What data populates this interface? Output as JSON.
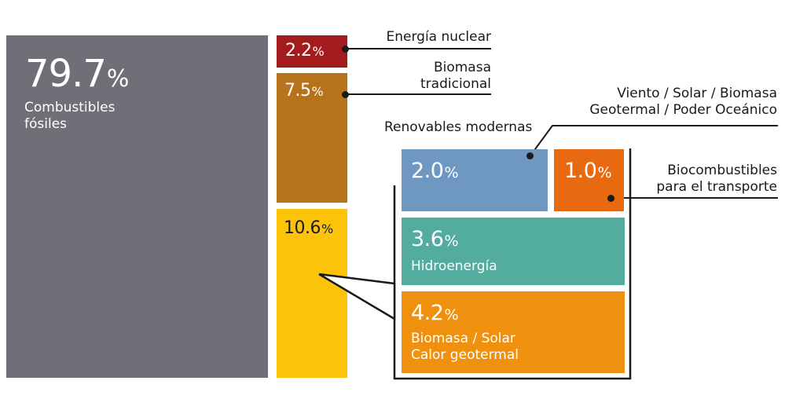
{
  "colors": {
    "fossil": "#706f78",
    "nuclear": "#a31b1d",
    "traditional_biomass": "#b7731b",
    "modern_renewables": "#fbc40b",
    "wind_solar": "#6e98c0",
    "biofuels": "#e86a10",
    "hydro": "#52ad9f",
    "biomass_heat": "#ef910e"
  },
  "fossil": {
    "value": "79.7",
    "unit": "%",
    "label_line1": "Combustibles",
    "label_line2": "fósiles"
  },
  "nuclear": {
    "value": "2.2",
    "unit": "%",
    "callout": "Energía nuclear"
  },
  "traditional_biomass": {
    "value": "7.5",
    "unit": "%",
    "callout_line1": "Biomasa",
    "callout_line2": "tradicional"
  },
  "modern_renewables": {
    "value": "10.6",
    "unit": "%",
    "callout": "Renovables modernas"
  },
  "wind_solar": {
    "value": "2.0",
    "unit": "%",
    "callout_line1": "Viento / Solar / Biomasa",
    "callout_line2": "Geotermal / Poder Oceánico"
  },
  "biofuels": {
    "value": "1.0",
    "unit": "%",
    "callout_line1": "Biocombustibles",
    "callout_line2": "para el transporte"
  },
  "hydro": {
    "value": "3.6",
    "unit": "%",
    "label": "Hidroenergía"
  },
  "biomass_heat": {
    "value": "4.2",
    "unit": "%",
    "label_line1": "Biomasa / Solar",
    "label_line2": "Calor geotermal"
  }
}
